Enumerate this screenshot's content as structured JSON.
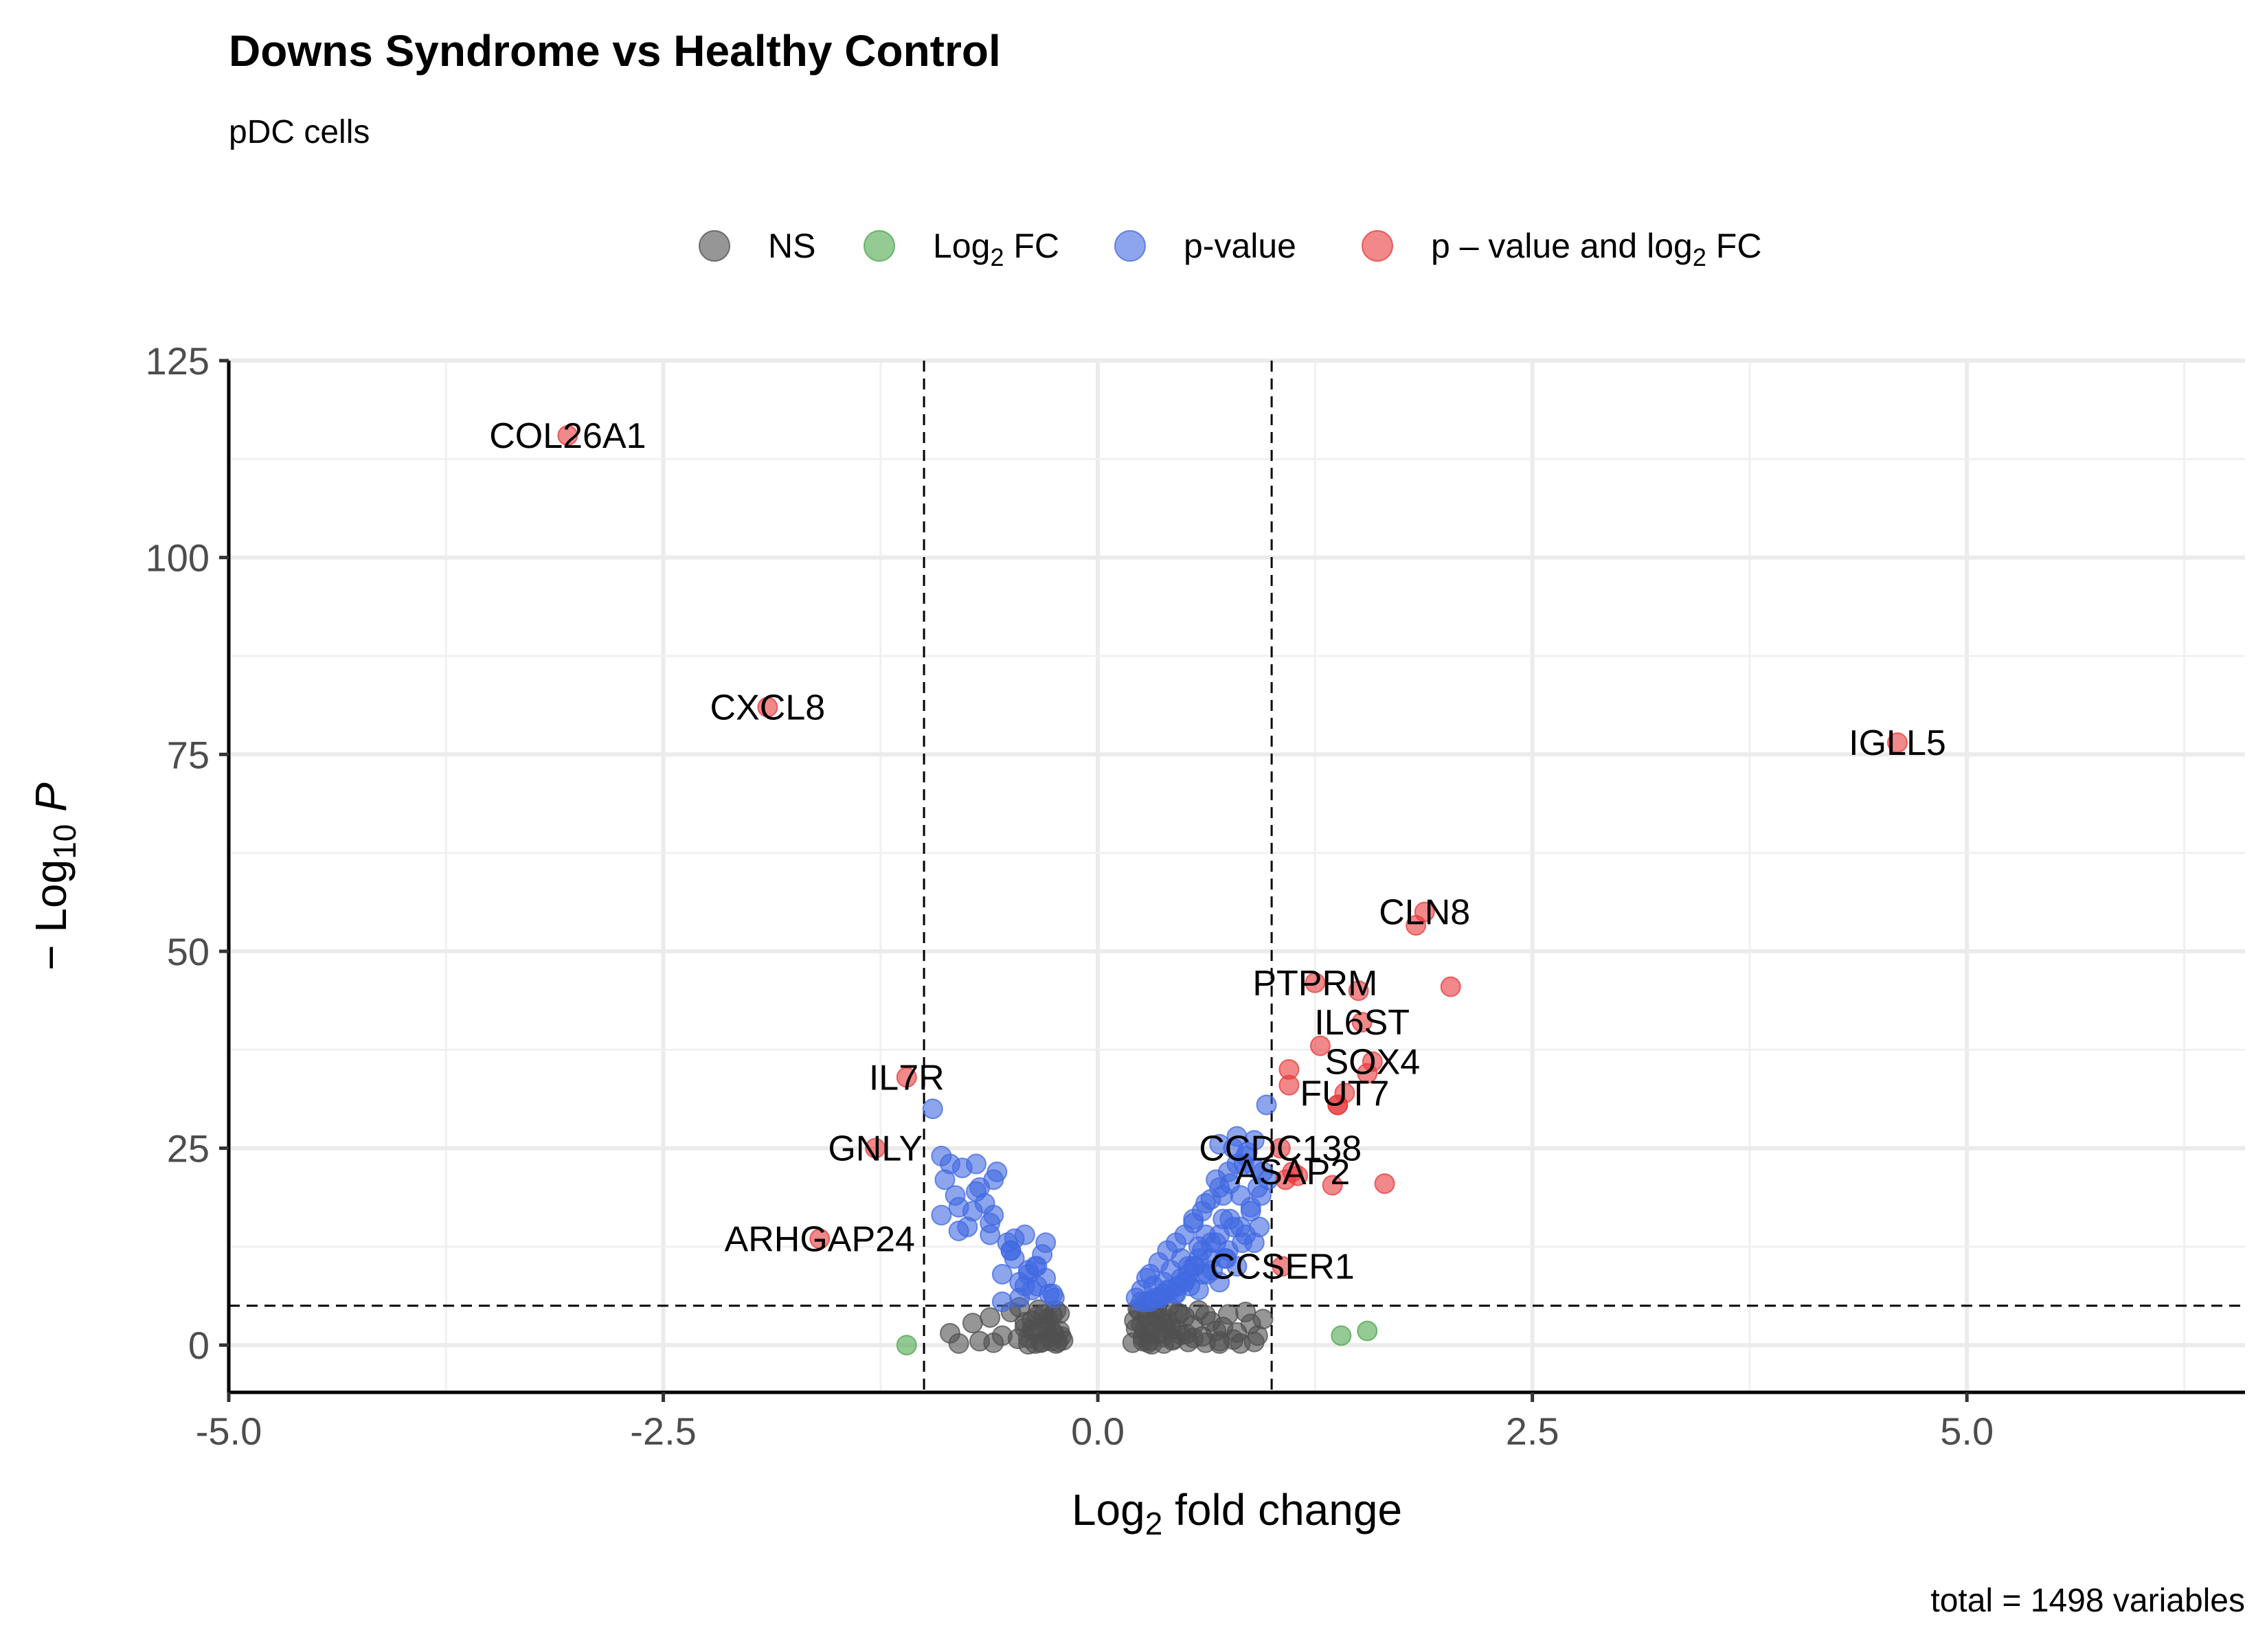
{
  "chart_data": {
    "type": "scatter",
    "title": "Downs Syndrome vs Healthy Control",
    "subtitle": "pDC cells",
    "xlabel": "Log2 fold change",
    "ylabel": "− Log10 P",
    "caption": "total = 1498 variables",
    "xlim": [
      -5.0,
      6.6
    ],
    "ylim": [
      -6,
      125
    ],
    "x_ticks": [
      "-5.0",
      "-2.5",
      "0.0",
      "2.5",
      "5.0"
    ],
    "x_tick_values": [
      -5.0,
      -2.5,
      0.0,
      2.5,
      5.0
    ],
    "y_ticks": [
      "0",
      "25",
      "50",
      "75",
      "100",
      "125"
    ],
    "y_tick_values": [
      0,
      25,
      50,
      75,
      100,
      125
    ],
    "grid": true,
    "legend_position": "top",
    "thresholds": {
      "log2fc": [
        -1.0,
        1.0
      ],
      "neg_log10_p": 5
    },
    "series": [
      {
        "name": "NS",
        "color": "#505050",
        "x": [
          -0.85,
          -0.8,
          -0.72,
          -0.68,
          -0.62,
          -0.6,
          -0.55,
          -0.5,
          -0.46,
          -0.42,
          -0.4,
          -0.38,
          -0.36,
          -0.34,
          -0.32,
          -0.3,
          -0.28,
          -0.26,
          -0.24,
          -0.22,
          -0.2,
          -0.45,
          -0.38,
          -0.33,
          -0.29,
          -0.25,
          -0.22,
          -0.4,
          -0.35,
          -0.3,
          -0.27,
          -0.24,
          -0.21,
          -0.42,
          -0.36,
          -0.31,
          -0.26,
          -0.23,
          0.2,
          0.22,
          0.24,
          0.26,
          0.28,
          0.3,
          0.32,
          0.34,
          0.36,
          0.38,
          0.4,
          0.42,
          0.44,
          0.46,
          0.48,
          0.5,
          0.52,
          0.55,
          0.58,
          0.6,
          0.62,
          0.65,
          0.68,
          0.7,
          0.72,
          0.75,
          0.78,
          0.8,
          0.82,
          0.85,
          0.88,
          0.9,
          0.92,
          0.95,
          0.23,
          0.27,
          0.31,
          0.35,
          0.39,
          0.43,
          0.47,
          0.51,
          0.25,
          0.29,
          0.33,
          0.37,
          0.41,
          0.45,
          0.21,
          0.26,
          0.3,
          0.34,
          0.38,
          0.55,
          0.62,
          0.7
        ],
        "y": [
          1.5,
          0.2,
          2.8,
          0.5,
          3.5,
          0.3,
          1.2,
          4.2,
          0.8,
          2.2,
          0.1,
          3.1,
          1.6,
          4.5,
          0.4,
          2.6,
          1.0,
          3.8,
          0.2,
          1.8,
          0.6,
          4.8,
          2.0,
          0.3,
          3.3,
          1.4,
          4.0,
          0.9,
          3.6,
          2.4,
          0.5,
          4.4,
          1.1,
          2.9,
          0.2,
          3.9,
          1.7,
          0.4,
          0.3,
          2.1,
          4.3,
          1.0,
          3.5,
          0.6,
          2.8,
          4.7,
          1.5,
          0.2,
          3.2,
          2.0,
          0.8,
          4.1,
          1.3,
          3.6,
          0.4,
          2.5,
          4.4,
          1.1,
          0.3,
          3.0,
          1.8,
          0.5,
          2.3,
          3.9,
          0.7,
          1.6,
          0.2,
          4.2,
          2.7,
          0.4,
          1.2,
          3.3,
          4.6,
          1.9,
          0.1,
          3.4,
          2.2,
          0.6,
          4.0,
          1.4,
          2.6,
          0.3,
          3.7,
          1.0,
          4.9,
          2.0,
          3.1,
          0.5,
          1.7,
          4.4,
          2.9,
          0.9,
          3.8,
          0.2
        ]
      },
      {
        "name": "Log2 FC",
        "color": "#4CA64C",
        "x": [
          -1.1,
          1.4,
          1.55
        ],
        "y": [
          0,
          1.2,
          1.8
        ]
      },
      {
        "name": "p-value",
        "color": "#4169E1",
        "x": [
          -0.95,
          -0.9,
          -0.88,
          -0.85,
          -0.82,
          -0.8,
          -0.78,
          -0.75,
          -0.72,
          -0.7,
          -0.68,
          -0.65,
          -0.62,
          -0.6,
          -0.58,
          -0.55,
          -0.52,
          -0.5,
          -0.48,
          -0.45,
          -0.42,
          -0.4,
          -0.38,
          -0.35,
          -0.32,
          -0.3,
          -0.28,
          -0.25,
          -0.9,
          -0.8,
          -0.7,
          -0.62,
          -0.55,
          -0.48,
          -0.42,
          -0.36,
          -0.3,
          -0.26,
          -0.6,
          -0.5,
          -0.45,
          -0.4,
          -0.35,
          0.22,
          0.25,
          0.28,
          0.3,
          0.32,
          0.35,
          0.38,
          0.4,
          0.42,
          0.45,
          0.48,
          0.5,
          0.52,
          0.55,
          0.58,
          0.6,
          0.62,
          0.65,
          0.68,
          0.7,
          0.72,
          0.75,
          0.78,
          0.8,
          0.82,
          0.85,
          0.88,
          0.9,
          0.92,
          0.95,
          0.98,
          0.6,
          0.65,
          0.7,
          0.75,
          0.8,
          0.85,
          0.9,
          0.55,
          0.62,
          0.68,
          0.72,
          0.78,
          0.84,
          0.45,
          0.5,
          0.58,
          0.66,
          0.74,
          0.82,
          0.88,
          0.94,
          0.35,
          0.42,
          0.48,
          0.55,
          0.6,
          0.7,
          0.76,
          0.3,
          0.38,
          0.46,
          0.52,
          0.58,
          0.65,
          0.25,
          0.33,
          0.4,
          0.5,
          0.56,
          0.28,
          0.36,
          0.44,
          0.53,
          0.63,
          0.73,
          0.83,
          0.93,
          0.97,
          0.8,
          0.86,
          0.9,
          0.7,
          0.76
        ],
        "y": [
          30,
          16.5,
          21,
          23,
          19,
          14.5,
          22.5,
          15,
          17,
          23,
          20,
          18,
          14,
          16.5,
          22,
          9,
          13,
          12,
          11,
          8,
          14,
          9.5,
          7,
          10,
          11.5,
          13,
          6.5,
          6,
          24,
          17.5,
          19.5,
          15.5,
          5.5,
          13.5,
          7.5,
          10,
          8.5,
          6.5,
          21,
          12,
          6,
          9,
          7.5,
          6,
          7,
          8.5,
          9,
          7.5,
          10.5,
          8,
          12,
          9.5,
          13,
          11,
          14,
          10,
          15.5,
          12.5,
          17,
          14,
          18.5,
          13,
          20,
          16,
          22,
          15,
          23,
          19,
          24,
          17.5,
          26,
          20,
          22,
          21,
          9,
          11,
          8,
          12,
          10,
          14,
          13,
          16,
          18,
          21,
          19,
          25,
          23,
          6.5,
          8,
          7,
          9.5,
          11,
          15,
          17,
          19,
          6,
          7,
          8.5,
          10,
          12,
          14,
          16,
          5.5,
          6.5,
          7.5,
          9,
          11,
          13,
          5.5,
          6,
          7,
          8,
          10,
          5.5,
          6,
          6.5,
          7.5,
          9,
          11,
          13,
          15,
          30.5,
          26.5,
          24.5,
          22.5,
          25.5,
          20.5
        ]
      },
      {
        "name": "p – value and log2 FC",
        "color": "#E8383B",
        "x": [
          -3.05,
          -1.9,
          4.6,
          1.88,
          1.83,
          2.03,
          1.25,
          1.5,
          1.52,
          1.28,
          1.58,
          1.55,
          1.1,
          1.1,
          1.38,
          1.42,
          1.65,
          1.35,
          1.05,
          1.08,
          1.12,
          1.15,
          1.38,
          1.06,
          -1.1,
          -1.28,
          -1.6
        ],
        "y": [
          115.5,
          81,
          76.5,
          55,
          53.3,
          45.5,
          46,
          45,
          41,
          38,
          36,
          34.5,
          35,
          33,
          30.5,
          32,
          20.5,
          20.3,
          25,
          21,
          22,
          21.5,
          30.5,
          10,
          34,
          25,
          13.5
        ]
      }
    ],
    "labels": [
      {
        "text": "COL26A1",
        "x": -3.05,
        "y": 115.5
      },
      {
        "text": "CXCL8",
        "x": -1.9,
        "y": 81
      },
      {
        "text": "IGLL5",
        "x": 4.6,
        "y": 76.5
      },
      {
        "text": "CLN8",
        "x": 1.88,
        "y": 55
      },
      {
        "text": "PTPRM",
        "x": 1.25,
        "y": 46
      },
      {
        "text": "IL6ST",
        "x": 1.52,
        "y": 41
      },
      {
        "text": "SOX4",
        "x": 1.58,
        "y": 36
      },
      {
        "text": "FUT7",
        "x": 1.42,
        "y": 32
      },
      {
        "text": "IL7R",
        "x": -1.1,
        "y": 34
      },
      {
        "text": "GNLY",
        "x": -1.28,
        "y": 25
      },
      {
        "text": "CCDC138",
        "x": 1.05,
        "y": 25
      },
      {
        "text": "ASAP2",
        "x": 1.12,
        "y": 22
      },
      {
        "text": "ARHGAP24",
        "x": -1.6,
        "y": 13.5
      },
      {
        "text": "CCSER1",
        "x": 1.06,
        "y": 10
      }
    ]
  }
}
